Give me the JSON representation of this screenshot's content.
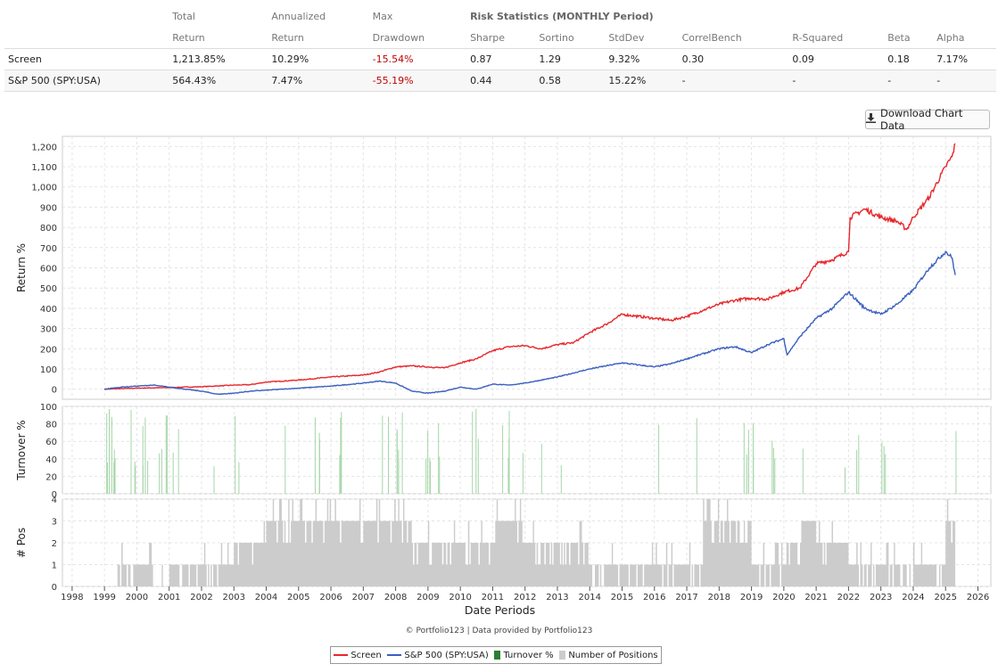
{
  "table": {
    "headers_top": [
      "Total",
      "Annualized",
      "Max",
      "Risk Statistics (MONTHLY Period)"
    ],
    "headers_bottom": [
      "Return",
      "Return",
      "Drawdown",
      "Sharpe",
      "Sortino",
      "StdDev",
      "CorrelBench",
      "R-Squared",
      "Beta",
      "Alpha"
    ],
    "rows": [
      {
        "name": "Screen",
        "values": [
          "1,213.85%",
          "10.29%",
          "-15.54%",
          "0.87",
          "1.29",
          "9.32%",
          "0.30",
          "0.09",
          "0.18",
          "7.17%"
        ]
      },
      {
        "name": "S&P 500 (SPY:USA)",
        "values": [
          "564.43%",
          "7.47%",
          "-55.19%",
          "0.44",
          "0.58",
          "15.22%",
          "-",
          "-",
          "-",
          "-"
        ]
      }
    ]
  },
  "download_button": "Download Chart Data",
  "credits": "© Portfolio123 | Data provided by Portfolio123",
  "legend": [
    {
      "label": "Screen",
      "color": "#e8262b",
      "kind": "line"
    },
    {
      "label": "S&P 500 (SPY:USA)",
      "color": "#3a5fbf",
      "kind": "line"
    },
    {
      "label": "Turnover %",
      "color": "#2e7d32",
      "kind": "box"
    },
    {
      "label": "Number of Positions",
      "color": "#cccccc",
      "kind": "box"
    }
  ],
  "chart_data": [
    {
      "type": "line",
      "ylabel": "Return %",
      "ylim": [
        -50,
        1250
      ],
      "yticks": [
        0,
        100,
        200,
        300,
        400,
        500,
        600,
        700,
        800,
        900,
        "1,000",
        "1,100",
        "1,200"
      ],
      "grid": true,
      "series": [
        {
          "name": "Screen",
          "color": "#e8262b",
          "x": [
            1999.0,
            2000.0,
            2001.0,
            2002.0,
            2003.0,
            2003.5,
            2004.0,
            2005.0,
            2006.0,
            2007.0,
            2007.5,
            2008.0,
            2008.5,
            2009.0,
            2009.5,
            2010.0,
            2010.5,
            2011.0,
            2011.5,
            2012.0,
            2012.5,
            2013.0,
            2013.5,
            2014.0,
            2014.5,
            2015.0,
            2015.5,
            2016.0,
            2016.5,
            2017.0,
            2017.5,
            2018.0,
            2018.5,
            2019.0,
            2019.5,
            2020.0,
            2020.5,
            2021.0,
            2021.5,
            2022.0,
            2022.05,
            2022.5,
            2023.0,
            2023.5,
            2023.8,
            2024.0,
            2024.5,
            2025.0,
            2025.2,
            2025.3
          ],
          "y": [
            0,
            5,
            8,
            12,
            20,
            22,
            35,
            45,
            60,
            70,
            85,
            110,
            115,
            110,
            105,
            130,
            150,
            190,
            210,
            215,
            200,
            220,
            230,
            280,
            320,
            370,
            360,
            350,
            340,
            360,
            390,
            420,
            440,
            450,
            445,
            480,
            500,
            620,
            640,
            680,
            850,
            890,
            850,
            830,
            790,
            850,
            950,
            1100,
            1150,
            1213.85
          ]
        },
        {
          "name": "S&P 500 (SPY:USA)",
          "color": "#3a5fbf",
          "x": [
            1999.0,
            1999.5,
            2000.0,
            2000.5,
            2001.0,
            2001.5,
            2002.0,
            2002.5,
            2003.0,
            2003.5,
            2004.0,
            2005.0,
            2006.0,
            2007.0,
            2007.5,
            2008.0,
            2008.5,
            2009.0,
            2009.5,
            2010.0,
            2010.5,
            2011.0,
            2011.5,
            2012.0,
            2013.0,
            2014.0,
            2015.0,
            2015.5,
            2016.0,
            2016.5,
            2017.0,
            2018.0,
            2018.5,
            2019.0,
            2019.5,
            2020.0,
            2020.1,
            2020.5,
            2021.0,
            2021.5,
            2022.0,
            2022.5,
            2023.0,
            2023.5,
            2024.0,
            2024.5,
            2025.0,
            2025.2,
            2025.3
          ],
          "y": [
            0,
            10,
            15,
            20,
            10,
            0,
            -10,
            -25,
            -20,
            -10,
            -5,
            5,
            15,
            30,
            40,
            30,
            -10,
            -20,
            -10,
            10,
            0,
            25,
            20,
            30,
            60,
            100,
            130,
            120,
            110,
            125,
            150,
            200,
            210,
            180,
            220,
            250,
            170,
            260,
            350,
            400,
            480,
            400,
            370,
            420,
            490,
            600,
            680,
            650,
            564.43
          ]
        }
      ]
    },
    {
      "type": "bar",
      "ylabel": "Turnover %",
      "ylim": [
        0,
        100
      ],
      "yticks": [
        0,
        20,
        40,
        60,
        80,
        100
      ],
      "color": "#2e7d32"
    },
    {
      "type": "area",
      "ylabel": "# Pos",
      "ylim": [
        0,
        4
      ],
      "yticks": [
        0,
        1,
        2,
        3,
        4
      ],
      "color": "#cccccc",
      "x": [
        1999.0,
        1999.4,
        2000.5,
        2001.0,
        2002.0,
        2003.0,
        2004.0,
        2005.0,
        2006.0,
        2007.0,
        2008.0,
        2008.5,
        2009.0,
        2010.0,
        2011.0,
        2012.0,
        2013.0,
        2014.0,
        2015.0,
        2016.0,
        2017.0,
        2017.5,
        2018.0,
        2019.0,
        2020.0,
        2020.5,
        2021.0,
        2022.0,
        2023.0,
        2024.0,
        2025.0,
        2025.3
      ],
      "values": [
        0,
        1,
        0,
        1,
        1,
        2,
        3,
        3,
        3,
        3,
        3,
        2,
        2,
        2,
        3,
        2,
        2,
        1,
        1,
        1,
        1,
        3,
        3,
        1,
        2,
        3,
        2,
        1,
        1,
        1,
        3,
        4
      ]
    }
  ],
  "x_axis": {
    "label": "Date Periods",
    "range": [
      1997.7,
      2026.4
    ],
    "ticks": [
      "1998",
      "1999",
      "2000",
      "2001",
      "2002",
      "2003",
      "2004",
      "2005",
      "2006",
      "2007",
      "2008",
      "2009",
      "2010",
      "2011",
      "2012",
      "2013",
      "2014",
      "2015",
      "2016",
      "2017",
      "2018",
      "2019",
      "2020",
      "2021",
      "2022",
      "2023",
      "2024",
      "2025",
      "2026"
    ]
  }
}
